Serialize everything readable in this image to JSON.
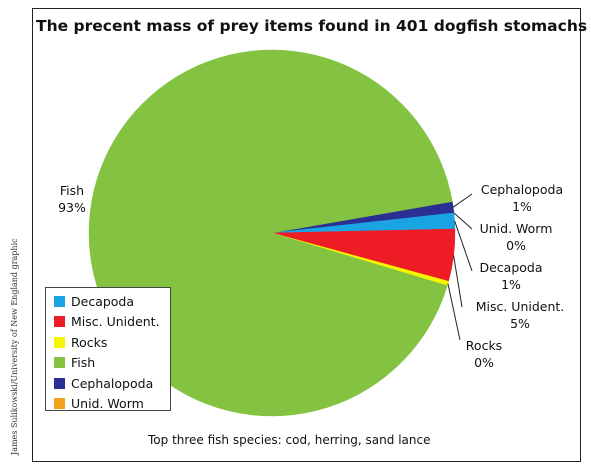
{
  "chart_data": {
    "type": "pie",
    "title": "The precent mass of prey items found in 401  dogfish stomachs",
    "slices": [
      {
        "name": "Decapoda",
        "value_label": "1%",
        "value": 1.4,
        "color": "#1aa4e4"
      },
      {
        "name": "Misc. Unident.",
        "value_label": "5%",
        "value": 4.6,
        "color": "#ee1c24"
      },
      {
        "name": "Rocks",
        "value_label": "0%",
        "value": 0.4,
        "color": "#f5f500"
      },
      {
        "name": "Fish",
        "value_label": "93%",
        "value": 92.6,
        "color": "#83c341"
      },
      {
        "name": "Cephalopoda",
        "value_label": "1%",
        "value": 1.0,
        "color": "#2b2f94"
      },
      {
        "name": "Unid. Worm",
        "value_label": "0%",
        "value": 0.0,
        "color": "#f0a21a"
      }
    ],
    "legend_position": "bottom-left",
    "annotation": "Top three fish species: cod, herring, sand lance"
  },
  "credit": "James Sulikowski/University of New England graphic"
}
